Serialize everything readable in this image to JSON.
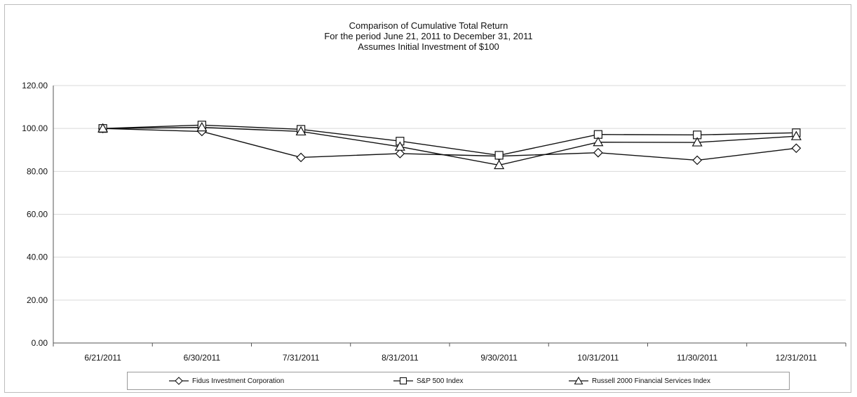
{
  "chart_data": {
    "type": "line",
    "title": "Comparison of  Cumulative Total Return",
    "subtitle": "For the period June 21, 2011 to December 31, 2011",
    "subtitle2": "Assumes Initial Investment of $100",
    "categories": [
      "6/21/2011",
      "6/30/2011",
      "7/31/2011",
      "8/31/2011",
      "9/30/2011",
      "10/31/2011",
      "11/30/2011",
      "12/31/2011"
    ],
    "ylim": [
      0,
      120
    ],
    "yticks": [
      "0.00",
      "20.00",
      "40.00",
      "60.00",
      "80.00",
      "100.00",
      "120.00"
    ],
    "grid": true,
    "legend_position": "bottom",
    "series": [
      {
        "name": "Fidus Investment Corporation",
        "marker": "diamond",
        "values": [
          100,
          98.6,
          86.5,
          88.3,
          87.1,
          88.7,
          85.2,
          90.8
        ]
      },
      {
        "name": "S&P 500 Index",
        "marker": "square",
        "values": [
          100,
          101.6,
          99.6,
          94.1,
          87.5,
          97.2,
          97.0,
          98.0
        ]
      },
      {
        "name": "Russell 2000 Financial Services Index",
        "marker": "triangle",
        "values": [
          100,
          100.5,
          98.6,
          91.5,
          82.9,
          93.6,
          93.5,
          96.4
        ]
      }
    ],
    "colors": {
      "line": "#111111",
      "marker_fill": "#ffffff",
      "grid": "#d9d9d9"
    }
  }
}
